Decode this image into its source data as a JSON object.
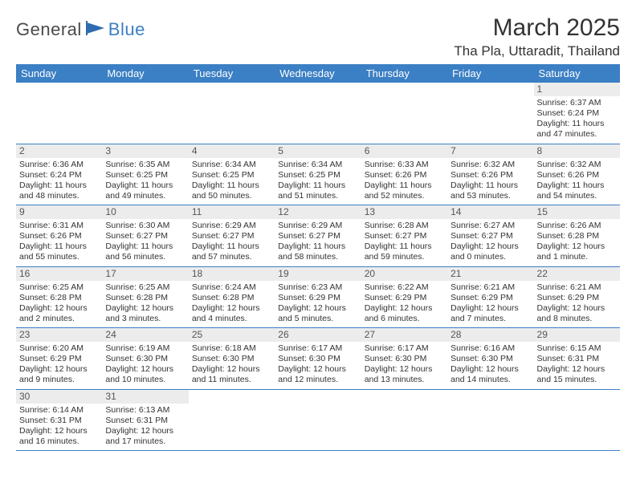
{
  "logo": {
    "word1": "General",
    "word2": "Blue"
  },
  "title": "March 2025",
  "location": "Tha Pla, Uttaradit, Thailand",
  "colors": {
    "header_bg": "#3b7fc4",
    "header_fg": "#ffffff",
    "rule": "#3b7fc4",
    "daynum_bg": "#ececec"
  },
  "day_headers": [
    "Sunday",
    "Monday",
    "Tuesday",
    "Wednesday",
    "Thursday",
    "Friday",
    "Saturday"
  ],
  "weeks": [
    [
      null,
      null,
      null,
      null,
      null,
      null,
      {
        "n": "1",
        "sr": "Sunrise: 6:37 AM",
        "ss": "Sunset: 6:24 PM",
        "dl1": "Daylight: 11 hours",
        "dl2": "and 47 minutes."
      }
    ],
    [
      {
        "n": "2",
        "sr": "Sunrise: 6:36 AM",
        "ss": "Sunset: 6:24 PM",
        "dl1": "Daylight: 11 hours",
        "dl2": "and 48 minutes."
      },
      {
        "n": "3",
        "sr": "Sunrise: 6:35 AM",
        "ss": "Sunset: 6:25 PM",
        "dl1": "Daylight: 11 hours",
        "dl2": "and 49 minutes."
      },
      {
        "n": "4",
        "sr": "Sunrise: 6:34 AM",
        "ss": "Sunset: 6:25 PM",
        "dl1": "Daylight: 11 hours",
        "dl2": "and 50 minutes."
      },
      {
        "n": "5",
        "sr": "Sunrise: 6:34 AM",
        "ss": "Sunset: 6:25 PM",
        "dl1": "Daylight: 11 hours",
        "dl2": "and 51 minutes."
      },
      {
        "n": "6",
        "sr": "Sunrise: 6:33 AM",
        "ss": "Sunset: 6:26 PM",
        "dl1": "Daylight: 11 hours",
        "dl2": "and 52 minutes."
      },
      {
        "n": "7",
        "sr": "Sunrise: 6:32 AM",
        "ss": "Sunset: 6:26 PM",
        "dl1": "Daylight: 11 hours",
        "dl2": "and 53 minutes."
      },
      {
        "n": "8",
        "sr": "Sunrise: 6:32 AM",
        "ss": "Sunset: 6:26 PM",
        "dl1": "Daylight: 11 hours",
        "dl2": "and 54 minutes."
      }
    ],
    [
      {
        "n": "9",
        "sr": "Sunrise: 6:31 AM",
        "ss": "Sunset: 6:26 PM",
        "dl1": "Daylight: 11 hours",
        "dl2": "and 55 minutes."
      },
      {
        "n": "10",
        "sr": "Sunrise: 6:30 AM",
        "ss": "Sunset: 6:27 PM",
        "dl1": "Daylight: 11 hours",
        "dl2": "and 56 minutes."
      },
      {
        "n": "11",
        "sr": "Sunrise: 6:29 AM",
        "ss": "Sunset: 6:27 PM",
        "dl1": "Daylight: 11 hours",
        "dl2": "and 57 minutes."
      },
      {
        "n": "12",
        "sr": "Sunrise: 6:29 AM",
        "ss": "Sunset: 6:27 PM",
        "dl1": "Daylight: 11 hours",
        "dl2": "and 58 minutes."
      },
      {
        "n": "13",
        "sr": "Sunrise: 6:28 AM",
        "ss": "Sunset: 6:27 PM",
        "dl1": "Daylight: 11 hours",
        "dl2": "and 59 minutes."
      },
      {
        "n": "14",
        "sr": "Sunrise: 6:27 AM",
        "ss": "Sunset: 6:27 PM",
        "dl1": "Daylight: 12 hours",
        "dl2": "and 0 minutes."
      },
      {
        "n": "15",
        "sr": "Sunrise: 6:26 AM",
        "ss": "Sunset: 6:28 PM",
        "dl1": "Daylight: 12 hours",
        "dl2": "and 1 minute."
      }
    ],
    [
      {
        "n": "16",
        "sr": "Sunrise: 6:25 AM",
        "ss": "Sunset: 6:28 PM",
        "dl1": "Daylight: 12 hours",
        "dl2": "and 2 minutes."
      },
      {
        "n": "17",
        "sr": "Sunrise: 6:25 AM",
        "ss": "Sunset: 6:28 PM",
        "dl1": "Daylight: 12 hours",
        "dl2": "and 3 minutes."
      },
      {
        "n": "18",
        "sr": "Sunrise: 6:24 AM",
        "ss": "Sunset: 6:28 PM",
        "dl1": "Daylight: 12 hours",
        "dl2": "and 4 minutes."
      },
      {
        "n": "19",
        "sr": "Sunrise: 6:23 AM",
        "ss": "Sunset: 6:29 PM",
        "dl1": "Daylight: 12 hours",
        "dl2": "and 5 minutes."
      },
      {
        "n": "20",
        "sr": "Sunrise: 6:22 AM",
        "ss": "Sunset: 6:29 PM",
        "dl1": "Daylight: 12 hours",
        "dl2": "and 6 minutes."
      },
      {
        "n": "21",
        "sr": "Sunrise: 6:21 AM",
        "ss": "Sunset: 6:29 PM",
        "dl1": "Daylight: 12 hours",
        "dl2": "and 7 minutes."
      },
      {
        "n": "22",
        "sr": "Sunrise: 6:21 AM",
        "ss": "Sunset: 6:29 PM",
        "dl1": "Daylight: 12 hours",
        "dl2": "and 8 minutes."
      }
    ],
    [
      {
        "n": "23",
        "sr": "Sunrise: 6:20 AM",
        "ss": "Sunset: 6:29 PM",
        "dl1": "Daylight: 12 hours",
        "dl2": "and 9 minutes."
      },
      {
        "n": "24",
        "sr": "Sunrise: 6:19 AM",
        "ss": "Sunset: 6:30 PM",
        "dl1": "Daylight: 12 hours",
        "dl2": "and 10 minutes."
      },
      {
        "n": "25",
        "sr": "Sunrise: 6:18 AM",
        "ss": "Sunset: 6:30 PM",
        "dl1": "Daylight: 12 hours",
        "dl2": "and 11 minutes."
      },
      {
        "n": "26",
        "sr": "Sunrise: 6:17 AM",
        "ss": "Sunset: 6:30 PM",
        "dl1": "Daylight: 12 hours",
        "dl2": "and 12 minutes."
      },
      {
        "n": "27",
        "sr": "Sunrise: 6:17 AM",
        "ss": "Sunset: 6:30 PM",
        "dl1": "Daylight: 12 hours",
        "dl2": "and 13 minutes."
      },
      {
        "n": "28",
        "sr": "Sunrise: 6:16 AM",
        "ss": "Sunset: 6:30 PM",
        "dl1": "Daylight: 12 hours",
        "dl2": "and 14 minutes."
      },
      {
        "n": "29",
        "sr": "Sunrise: 6:15 AM",
        "ss": "Sunset: 6:31 PM",
        "dl1": "Daylight: 12 hours",
        "dl2": "and 15 minutes."
      }
    ],
    [
      {
        "n": "30",
        "sr": "Sunrise: 6:14 AM",
        "ss": "Sunset: 6:31 PM",
        "dl1": "Daylight: 12 hours",
        "dl2": "and 16 minutes."
      },
      {
        "n": "31",
        "sr": "Sunrise: 6:13 AM",
        "ss": "Sunset: 6:31 PM",
        "dl1": "Daylight: 12 hours",
        "dl2": "and 17 minutes."
      },
      null,
      null,
      null,
      null,
      null
    ]
  ]
}
